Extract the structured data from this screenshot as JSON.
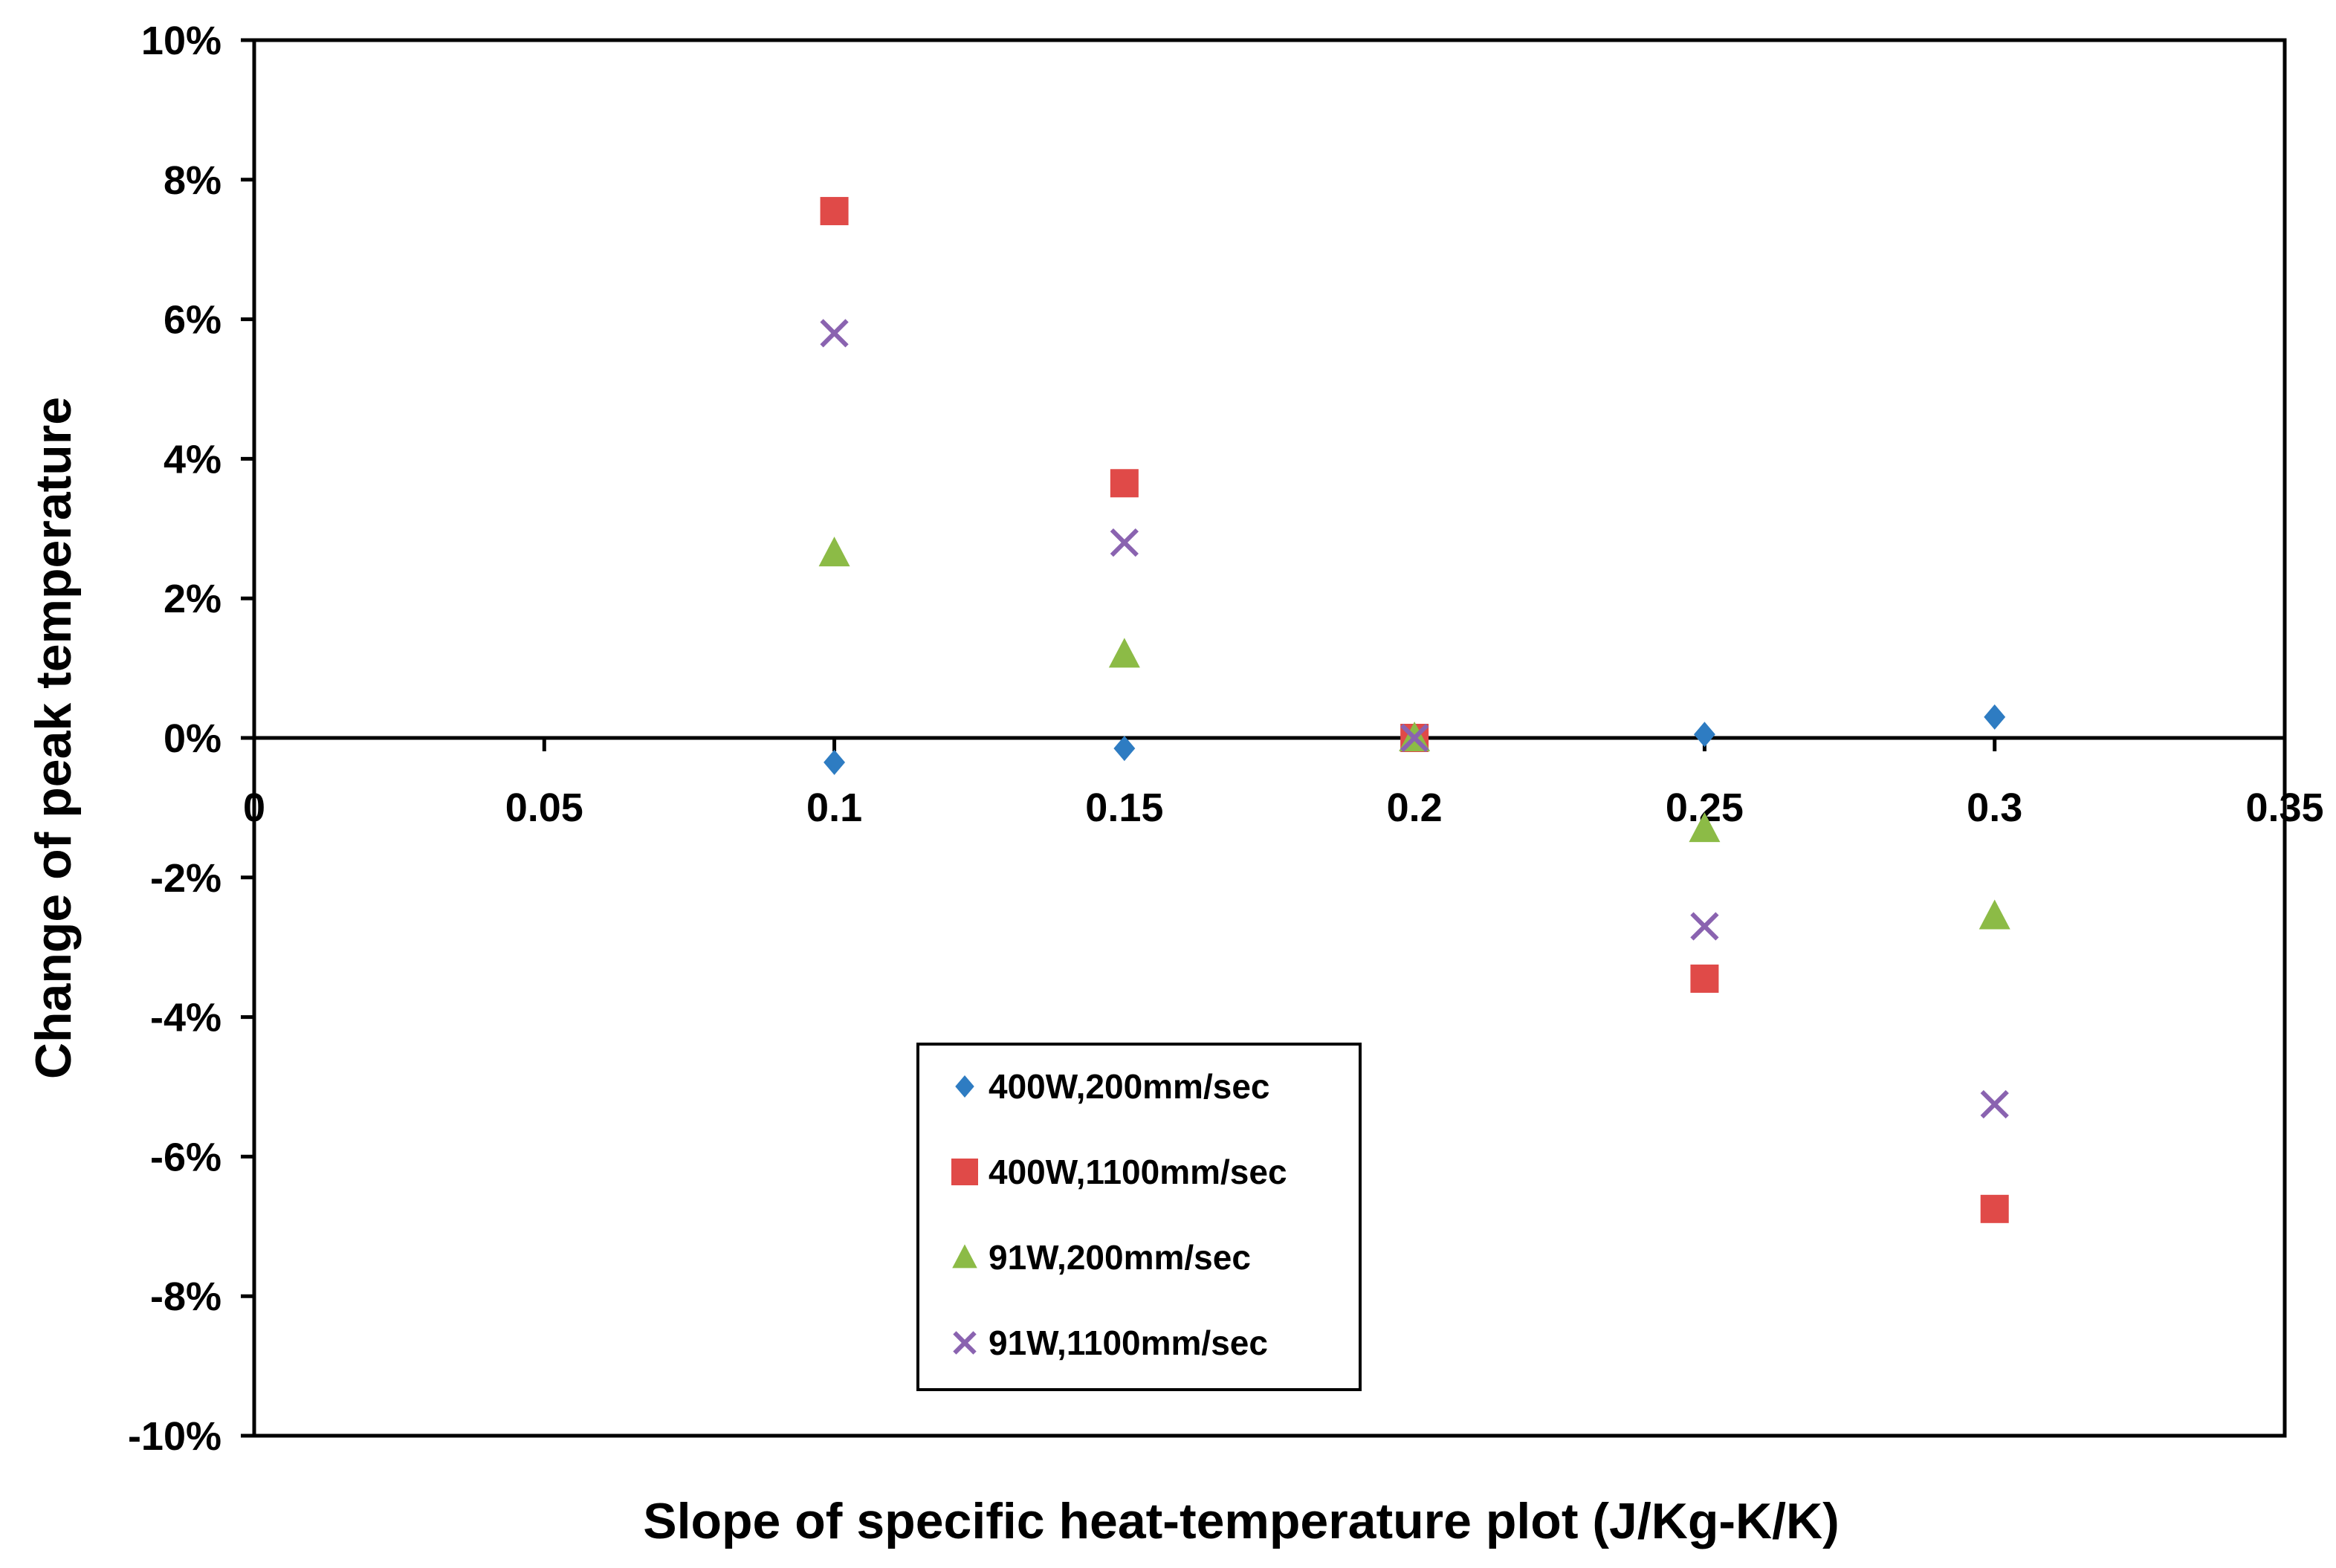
{
  "chart_data": {
    "type": "scatter",
    "title": "",
    "xlabel": "Slope of specific heat-temperature plot (J/Kg-K/K)",
    "ylabel": "Change of peak temperature",
    "xlim": [
      0,
      0.35
    ],
    "ylim": [
      -0.1,
      0.1
    ],
    "x_ticks": [
      0,
      0.05,
      0.1,
      0.15,
      0.2,
      0.25,
      0.3,
      0.35
    ],
    "x_tick_labels": [
      "0",
      "0.05",
      "0.1",
      "0.15",
      "0.2",
      "0.25",
      "0.3",
      "0.35"
    ],
    "y_ticks": [
      0.1,
      0.08,
      0.06,
      0.04,
      0.02,
      0.0,
      -0.02,
      -0.04,
      -0.06,
      -0.08,
      -0.1
    ],
    "y_tick_labels": [
      "10%",
      "8%",
      "6%",
      "4%",
      "2%",
      "0%",
      "-2%",
      "-4%",
      "-6%",
      "-8%",
      "-10%"
    ],
    "grid": false,
    "legend_position": "bottom-center",
    "x": [
      0.1,
      0.15,
      0.2,
      0.25,
      0.3
    ],
    "series": [
      {
        "name": "400W,200mm/sec",
        "marker": "diamond",
        "color": "#2e7cc2",
        "values": [
          -0.0035,
          -0.0015,
          0.0,
          0.0005,
          0.003
        ]
      },
      {
        "name": "400W,1100mm/sec",
        "marker": "square",
        "color": "#e04a48",
        "values": [
          0.0755,
          0.0365,
          0.0,
          -0.0345,
          -0.0675
        ]
      },
      {
        "name": "91W,200mm/sec",
        "marker": "triangle",
        "color": "#8cbb46",
        "values": [
          0.0265,
          0.012,
          0.0,
          -0.013,
          -0.0255
        ]
      },
      {
        "name": "91W,1100mm/sec",
        "marker": "cross",
        "color": "#8a63b0",
        "values": [
          0.058,
          0.028,
          0.0,
          -0.027,
          -0.0525
        ]
      }
    ]
  }
}
